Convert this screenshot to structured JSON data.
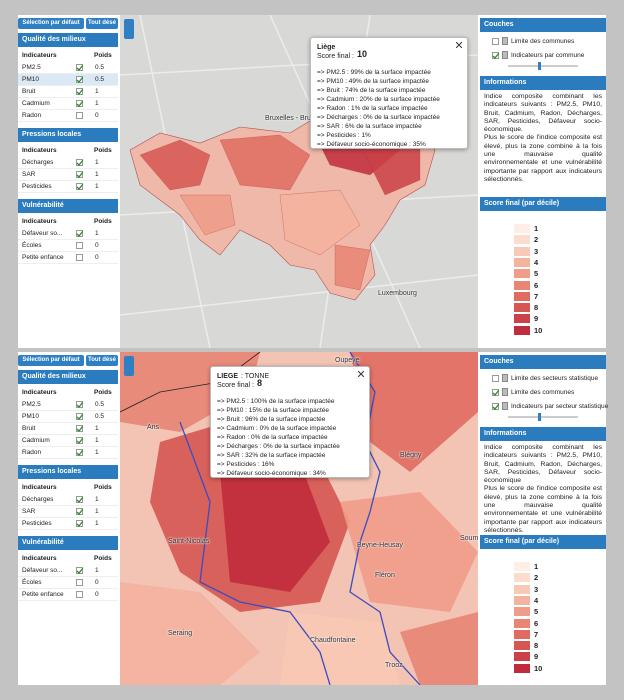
{
  "panels": [
    {
      "buttons": [
        "Sélection par défaut",
        "Tout désé"
      ],
      "groups": [
        {
          "title": "Qualité des milieux",
          "header": [
            "Indicateurs",
            "Poids"
          ],
          "rows": [
            {
              "name": "PM2.5",
              "checked": true,
              "weight": "0.5"
            },
            {
              "name": "PM10",
              "checked": true,
              "weight": "0.5"
            },
            {
              "name": "Bruit",
              "checked": true,
              "weight": "1"
            },
            {
              "name": "Cadmium",
              "checked": true,
              "weight": "1"
            },
            {
              "name": "Radon",
              "checked": false,
              "weight": "0"
            }
          ]
        },
        {
          "title": "Pressions locales",
          "header": [
            "Indicateurs",
            "Poids"
          ],
          "rows": [
            {
              "name": "Décharges",
              "checked": true,
              "weight": "1"
            },
            {
              "name": "SAR",
              "checked": true,
              "weight": "1"
            },
            {
              "name": "Pesticides",
              "checked": true,
              "weight": "1"
            }
          ]
        },
        {
          "title": "Vulnérabilité",
          "header": [
            "Indicateurs",
            "Poids"
          ],
          "rows": [
            {
              "name": "Défaveur so...",
              "checked": true,
              "weight": "1"
            },
            {
              "name": "Écoles",
              "checked": false,
              "weight": "0"
            },
            {
              "name": "Petite enfance",
              "checked": false,
              "weight": "0"
            }
          ]
        }
      ],
      "popup": {
        "title": "Liège",
        "subtitle": "",
        "score_label": "Score final :",
        "score": "10",
        "lines": [
          "=> PM2.5 : 99% de la surface impactée",
          "=> PM10 : 49% de la surface impactée",
          "=> Bruit : 74% de la surface impactée",
          "=> Cadmium : 20% de la surface impactée",
          "=> Radon : 1% de la surface impactée",
          "=> Décharges : 0% de la surface impactée",
          "=> SAR : 6% de la surface impactée",
          "=> Pesticides : 1%",
          "=> Défaveur socio-économique : 35%"
        ]
      },
      "map_labels": [
        "Bruxelles - Brussel",
        "Luxembourg"
      ],
      "layers_title": "Couches",
      "layers": [
        {
          "name": "Limite des communes",
          "checked": false
        },
        {
          "name": "Indicateurs par commune",
          "checked": true
        }
      ],
      "info_title": "Informations",
      "info_text": [
        "Indice composite combinant les indicateurs suivants : PM2.5, PM10, Bruit, Cadmium, Radon, Décharges, SAR, Pesticides, Défaveur socio-économique.",
        "Plus le score de l'indice composite est élevé, plus la zone combine à la fois une mauvaise qualité environnementale et une vulnérabilité importante par rapport aux indicateurs sélectionnés."
      ],
      "legend_title": "Score final (par décile)",
      "legend": [
        "1",
        "2",
        "3",
        "4",
        "5",
        "6",
        "7",
        "8",
        "9",
        "10"
      ]
    },
    {
      "buttons": [
        "Sélection par défaut",
        "Tout désé"
      ],
      "groups": [
        {
          "title": "Qualité des milieux",
          "header": [
            "Indicateurs",
            "Poids"
          ],
          "rows": [
            {
              "name": "PM2.5",
              "checked": true,
              "weight": "0.5"
            },
            {
              "name": "PM10",
              "checked": true,
              "weight": "0.5"
            },
            {
              "name": "Bruit",
              "checked": true,
              "weight": "1"
            },
            {
              "name": "Cadmium",
              "checked": true,
              "weight": "1"
            },
            {
              "name": "Radon",
              "checked": true,
              "weight": "1"
            }
          ]
        },
        {
          "title": "Pressions locales",
          "header": [
            "Indicateurs",
            "Poids"
          ],
          "rows": [
            {
              "name": "Décharges",
              "checked": true,
              "weight": "1"
            },
            {
              "name": "SAR",
              "checked": true,
              "weight": "1"
            },
            {
              "name": "Pesticides",
              "checked": true,
              "weight": "1"
            }
          ]
        },
        {
          "title": "Vulnérabilité",
          "header": [
            "Indicateurs",
            "Poids"
          ],
          "rows": [
            {
              "name": "Défaveur so...",
              "checked": true,
              "weight": "1"
            },
            {
              "name": "Écoles",
              "checked": false,
              "weight": "0"
            },
            {
              "name": "Petite enfance",
              "checked": false,
              "weight": "0"
            }
          ]
        }
      ],
      "popup": {
        "title": "LIEGE",
        "subtitle": ": TONNE",
        "score_label": "Score final :",
        "score": "8",
        "lines": [
          "=> PM2.5 : 100% de la surface impactée",
          "=> PM10 : 15% de la surface impactée",
          "=> Bruit : 96% de la surface impactée",
          "=> Cadmium : 0% de la surface impactée",
          "=> Radon : 0% de la surface impactée",
          "=> Décharges : 0% de la surface impactée",
          "=> SAR : 32% de la surface impactée",
          "=> Pesticides : 16%",
          "=> Défaveur socio-économique : 34%"
        ]
      },
      "map_labels": [
        "Ans",
        "Saint-Nicolas",
        "Seraing",
        "Chaudfontaine",
        "Beyne-Heusay",
        "Fléron",
        "Blégny",
        "Soumagne",
        "Trooz",
        "Oupeye"
      ],
      "layers_title": "Couches",
      "layers": [
        {
          "name": "Limite des secteurs statistique",
          "checked": false
        },
        {
          "name": "Limite des communes",
          "checked": true
        },
        {
          "name": "Indicateurs par secteur statistique",
          "checked": true
        }
      ],
      "info_title": "Informations",
      "info_text": [
        "Indice composite combinant les indicateurs suivants : PM2.5, PM10, Bruit, Cadmium, Radon, Décharges, SAR, Pesticides, Défaveur socio-économique",
        "Plus le score de l'indice composite est élevé, plus la zone combine à la fois une mauvaise qualité environnementale et une vulnérabilité importante par rapport aux indicateurs sélectionnés."
      ],
      "legend_title": "Score final (par décile)",
      "legend": [
        "1",
        "2",
        "3",
        "4",
        "5",
        "6",
        "7",
        "8",
        "9",
        "10"
      ]
    }
  ]
}
